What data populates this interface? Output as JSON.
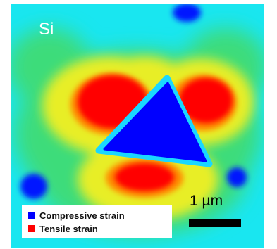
{
  "material": "Si",
  "scale_bar": {
    "label": "1 µm"
  },
  "legend": [
    {
      "label": "Compressive strain",
      "color": "#0000ff"
    },
    {
      "label": "Tensile strain",
      "color": "#ff0000"
    }
  ]
}
